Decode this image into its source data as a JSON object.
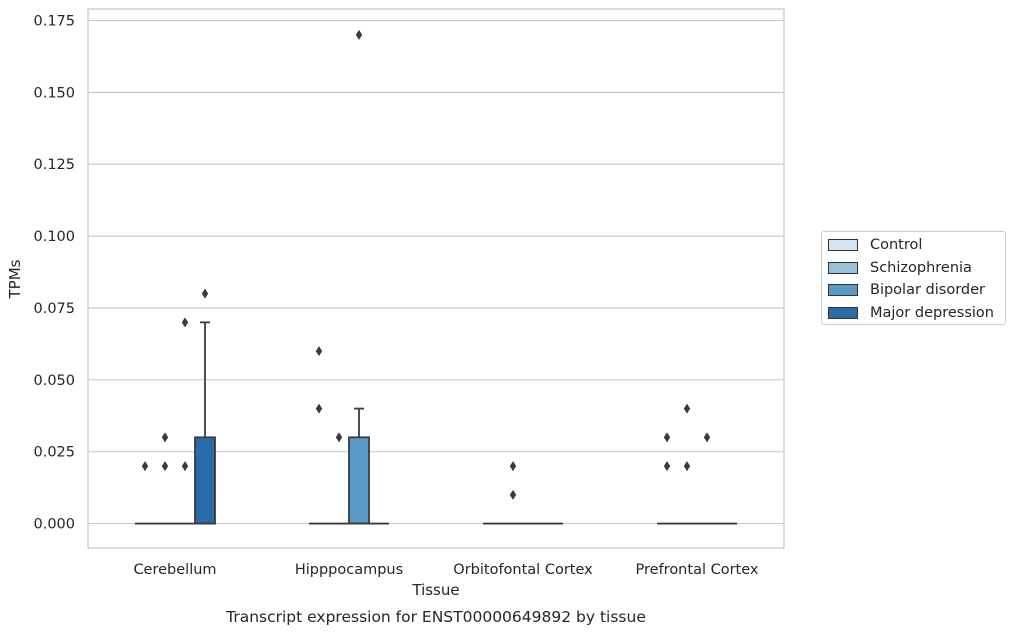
{
  "chart_data": {
    "type": "box",
    "title": "Transcript expression for ENST00000649892 by tissue",
    "xlabel": "Tissue",
    "ylabel": "TPMs",
    "ylim": [
      -0.0085,
      0.179
    ],
    "yticks": [
      "0.000",
      "0.025",
      "0.050",
      "0.075",
      "0.100",
      "0.125",
      "0.150",
      "0.175"
    ],
    "ytick_values": [
      0,
      0.025,
      0.05,
      0.075,
      0.1,
      0.125,
      0.15,
      0.175
    ],
    "categories": [
      "Cerebellum",
      "Hipppocampus",
      "Orbitofontal Cortex",
      "Prefrontal Cortex"
    ],
    "grid": true,
    "legend_position": "right",
    "series": [
      {
        "name": "Control",
        "color": "#d4e3f1",
        "boxes": [
          {
            "q1": 0,
            "median": 0,
            "q3": 0,
            "whisker_low": 0,
            "whisker_high": 0,
            "outliers": [
              0.02
            ]
          },
          {
            "q1": 0,
            "median": 0,
            "q3": 0,
            "whisker_low": 0,
            "whisker_high": 0,
            "outliers": [
              0.04,
              0.06
            ]
          },
          {
            "q1": 0,
            "median": 0,
            "q3": 0,
            "whisker_low": 0,
            "whisker_high": 0,
            "outliers": []
          },
          {
            "q1": 0,
            "median": 0,
            "q3": 0,
            "whisker_low": 0,
            "whisker_high": 0,
            "outliers": [
              0.02,
              0.03
            ]
          }
        ]
      },
      {
        "name": "Schizophrenia",
        "color": "#9ac1dc",
        "boxes": [
          {
            "q1": 0,
            "median": 0,
            "q3": 0,
            "whisker_low": 0,
            "whisker_high": 0,
            "outliers": [
              0.02,
              0.03
            ]
          },
          {
            "q1": 0,
            "median": 0,
            "q3": 0,
            "whisker_low": 0,
            "whisker_high": 0,
            "outliers": [
              0.03
            ]
          },
          {
            "q1": 0,
            "median": 0,
            "q3": 0,
            "whisker_low": 0,
            "whisker_high": 0,
            "outliers": [
              0.01,
              0.02
            ]
          },
          {
            "q1": 0,
            "median": 0,
            "q3": 0,
            "whisker_low": 0,
            "whisker_high": 0,
            "outliers": [
              0.02,
              0.04
            ]
          }
        ]
      },
      {
        "name": "Bipolar disorder",
        "color": "#5a9ac6",
        "boxes": [
          {
            "q1": 0,
            "median": 0,
            "q3": 0,
            "whisker_low": 0,
            "whisker_high": 0,
            "outliers": [
              0.02,
              0.07
            ]
          },
          {
            "q1": 0,
            "median": 0,
            "q3": 0.03,
            "whisker_low": 0,
            "whisker_high": 0.04,
            "outliers": [
              0.17
            ]
          },
          {
            "q1": 0,
            "median": 0,
            "q3": 0,
            "whisker_low": 0,
            "whisker_high": 0,
            "outliers": []
          },
          {
            "q1": 0,
            "median": 0,
            "q3": 0,
            "whisker_low": 0,
            "whisker_high": 0,
            "outliers": [
              0.03
            ]
          }
        ]
      },
      {
        "name": "Major depression",
        "color": "#2b6ba8",
        "boxes": [
          {
            "q1": 0,
            "median": 0,
            "q3": 0.03,
            "whisker_low": 0,
            "whisker_high": 0.07,
            "outliers": [
              0.08
            ]
          },
          {
            "q1": 0,
            "median": 0,
            "q3": 0,
            "whisker_low": 0,
            "whisker_high": 0,
            "outliers": []
          },
          {
            "q1": 0,
            "median": 0,
            "q3": 0,
            "whisker_low": 0,
            "whisker_high": 0,
            "outliers": []
          },
          {
            "q1": 0,
            "median": 0,
            "q3": 0,
            "whisker_low": 0,
            "whisker_high": 0,
            "outliers": []
          }
        ]
      }
    ]
  }
}
